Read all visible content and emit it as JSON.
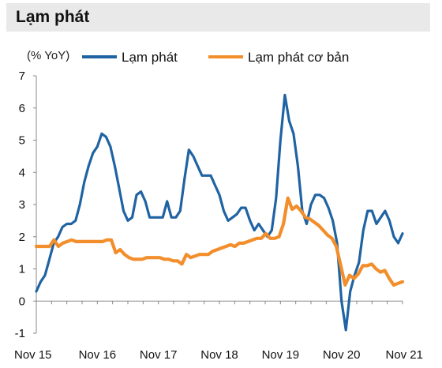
{
  "header": {
    "title": "Lạm phát"
  },
  "colors": {
    "title_bg": "#e9e9e9",
    "axis": "#888888"
  },
  "chart_data": {
    "type": "line",
    "title": "Lạm phát",
    "ylabel": "(% YoY)",
    "xlabel": "",
    "ylim": [
      -1,
      7
    ],
    "yticks": [
      -1,
      0,
      1,
      2,
      3,
      4,
      5,
      6,
      7
    ],
    "x_start_month": "Nov 15",
    "x_end_month": "Nov 21",
    "x_tick_labels": [
      "Nov 15",
      "Nov 16",
      "Nov 17",
      "Nov 18",
      "Nov 19",
      "Nov 20",
      "Nov 21"
    ],
    "grid": false,
    "legend_position": "top",
    "series": [
      {
        "name": "Lạm phát",
        "color": "#1f63a3",
        "values": [
          0.3,
          0.6,
          0.8,
          1.3,
          1.8,
          2.0,
          2.3,
          2.4,
          2.4,
          2.5,
          3.0,
          3.7,
          4.2,
          4.6,
          4.8,
          5.2,
          5.1,
          4.8,
          4.2,
          3.5,
          2.8,
          2.5,
          2.6,
          3.3,
          3.4,
          3.1,
          2.6,
          2.6,
          2.6,
          2.6,
          3.1,
          2.6,
          2.6,
          2.8,
          3.8,
          4.7,
          4.5,
          4.2,
          3.9,
          3.9,
          3.9,
          3.6,
          3.3,
          2.8,
          2.5,
          2.6,
          2.7,
          2.9,
          2.9,
          2.5,
          2.2,
          2.4,
          2.2,
          2.0,
          2.2,
          3.2,
          5.0,
          6.4,
          5.6,
          5.2,
          4.2,
          2.8,
          2.4,
          3.0,
          3.3,
          3.3,
          3.2,
          2.9,
          2.5,
          1.8,
          0.0,
          -0.9,
          0.3,
          0.8,
          1.2,
          2.2,
          2.8,
          2.8,
          2.4,
          2.6,
          2.8,
          2.5,
          2.0,
          1.8,
          2.1
        ]
      },
      {
        "name": "Lạm phát cơ bản",
        "color": "#f28e2b",
        "values": [
          1.7,
          1.7,
          1.7,
          1.7,
          1.9,
          1.7,
          1.8,
          1.85,
          1.9,
          1.85,
          1.85,
          1.85,
          1.85,
          1.85,
          1.85,
          1.85,
          1.9,
          1.9,
          1.5,
          1.6,
          1.45,
          1.35,
          1.3,
          1.3,
          1.3,
          1.35,
          1.35,
          1.35,
          1.35,
          1.3,
          1.3,
          1.25,
          1.25,
          1.15,
          1.45,
          1.35,
          1.4,
          1.45,
          1.45,
          1.45,
          1.55,
          1.6,
          1.65,
          1.7,
          1.75,
          1.7,
          1.8,
          1.8,
          1.85,
          1.9,
          1.95,
          1.95,
          2.1,
          1.95,
          1.95,
          2.0,
          2.4,
          3.2,
          2.85,
          2.95,
          2.8,
          2.6,
          2.55,
          2.45,
          2.35,
          2.2,
          2.05,
          1.95,
          1.7,
          1.1,
          0.5,
          0.8,
          0.7,
          0.85,
          1.1,
          1.1,
          1.15,
          1.0,
          0.9,
          0.95,
          0.7,
          0.5,
          0.55,
          0.6
        ]
      }
    ]
  }
}
